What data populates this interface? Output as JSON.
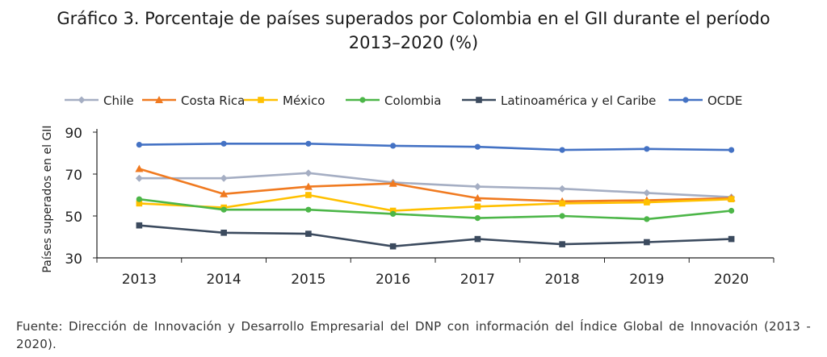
{
  "title_line1": "Gráfico 3. Porcentaje de países superados por Colombia en el GII durante el período",
  "title_line2": "2013–2020 (%)",
  "source": "Fuente: Dirección de Innovación y Desarrollo Empresarial del DNP con información del Índice Global de Innovación (2013 - 2020).",
  "chart_data": {
    "type": "line",
    "x": [
      "2013",
      "2014",
      "2015",
      "2016",
      "2017",
      "2018",
      "2019",
      "2020"
    ],
    "ylabel": "Países superados en el GII",
    "xlabel": "",
    "ylim": [
      30,
      90
    ],
    "yticks": [
      30,
      50,
      70,
      90
    ],
    "grid": false,
    "legend_position": "top",
    "series": [
      {
        "name": "Chile",
        "color": "#a5aec3",
        "marker": "diamond",
        "values": [
          68,
          68,
          70.5,
          66,
          64,
          63,
          61,
          59
        ]
      },
      {
        "name": "Costa Rica",
        "color": "#f07a20",
        "marker": "triangle",
        "values": [
          72.5,
          60.5,
          64,
          65.5,
          58.5,
          57,
          57.5,
          58.5
        ]
      },
      {
        "name": "México",
        "color": "#ffc000",
        "marker": "square",
        "values": [
          56,
          54,
          60,
          52.5,
          54.5,
          56,
          56.5,
          58
        ]
      },
      {
        "name": "Colombia",
        "color": "#4cb648",
        "marker": "circle",
        "values": [
          58,
          53,
          53,
          51,
          49,
          50,
          48.5,
          52.5
        ]
      },
      {
        "name": "Latinoamérica y el Caribe",
        "color": "#3b4a5e",
        "marker": "square",
        "values": [
          45.5,
          42,
          41.5,
          35.5,
          39,
          36.5,
          37.5,
          39
        ]
      },
      {
        "name": "OCDE",
        "color": "#4472c4",
        "marker": "circle",
        "values": [
          84,
          84.5,
          84.5,
          83.5,
          83,
          81.5,
          82,
          81.5
        ]
      }
    ]
  }
}
